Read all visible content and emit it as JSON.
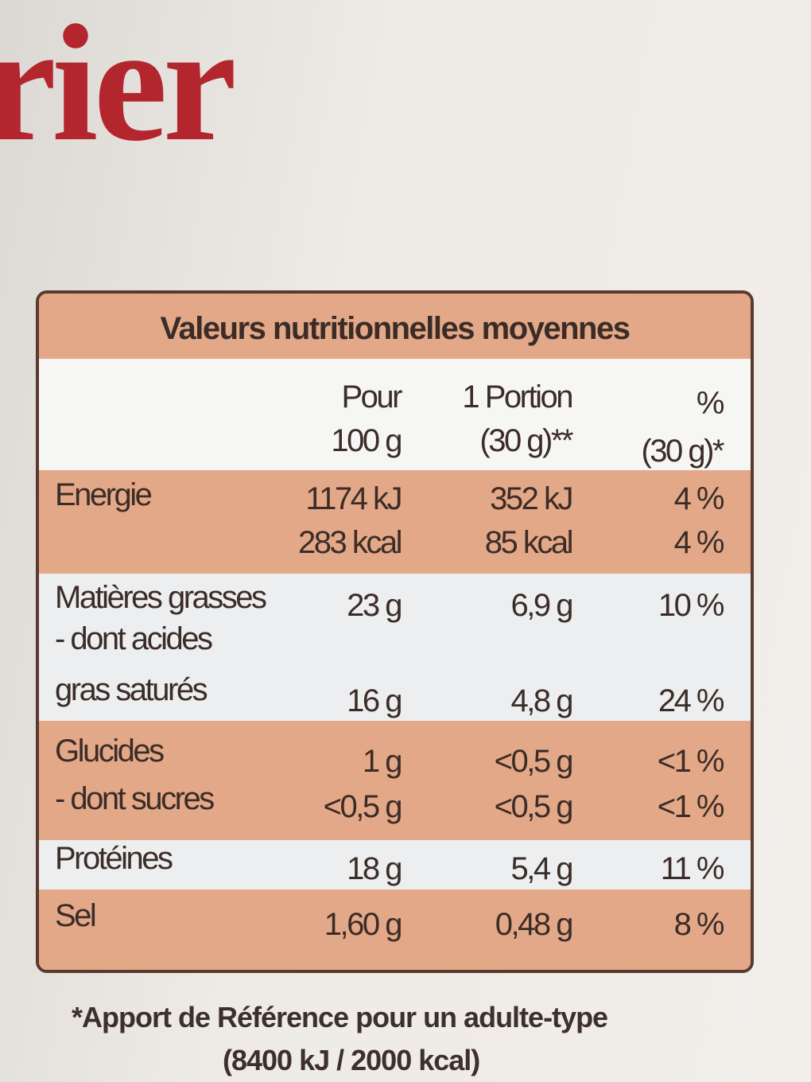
{
  "brand": "rier",
  "table": {
    "title": "Valeurs nutritionnelles moyennes",
    "header": [
      [
        "Pour",
        "100 g"
      ],
      [
        "1 Portion",
        "(30 g)**"
      ],
      [
        "%",
        "(30 g)*"
      ]
    ],
    "rows": [
      {
        "label": [
          "Energie"
        ],
        "cells": [
          [
            "1174 kJ",
            "283 kcal"
          ],
          [
            "352 kJ",
            "85 kcal"
          ],
          [
            "4 %",
            "4 %"
          ]
        ]
      },
      {
        "label": [
          "Matières grasses"
        ],
        "cells": [
          [
            "23 g"
          ],
          [
            "6,9 g"
          ],
          [
            "10 %"
          ]
        ]
      },
      {
        "label": [
          "- dont acides",
          "gras saturés"
        ],
        "cells": [
          [
            "16 g"
          ],
          [
            "4,8 g"
          ],
          [
            "24 %"
          ]
        ]
      },
      {
        "label": [
          "Glucides"
        ],
        "cells": [
          [
            "1 g"
          ],
          [
            "<0,5 g"
          ],
          [
            "<1 %"
          ]
        ]
      },
      {
        "label": [
          "- dont sucres"
        ],
        "cells": [
          [
            "<0,5 g"
          ],
          [
            "<0,5 g"
          ],
          [
            "<1 %"
          ]
        ]
      },
      {
        "label": [
          "Protéines"
        ],
        "cells": [
          [
            "18 g"
          ],
          [
            "5,4 g"
          ],
          [
            "11 %"
          ]
        ]
      },
      {
        "label": [
          "Sel"
        ],
        "cells": [
          [
            "1,60 g"
          ],
          [
            "0,48 g"
          ],
          [
            "8 %"
          ]
        ]
      }
    ]
  },
  "footnote": [
    "*Apport de Référence pour un adulte-type",
    "(8400 kJ / 2000 kcal)"
  ]
}
